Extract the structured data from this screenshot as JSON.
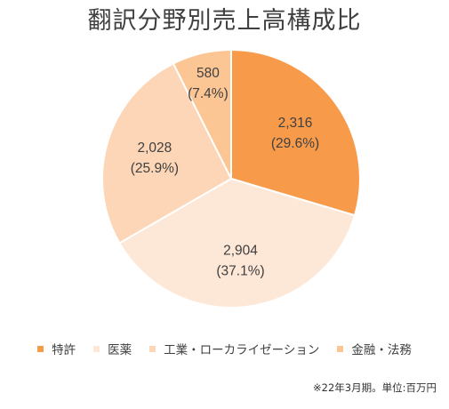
{
  "chart_data": {
    "type": "pie",
    "title": "翻訳分野別売上高構成比",
    "categories": [
      "特許",
      "医薬",
      "工業・ローカライゼーション",
      "金融・法務"
    ],
    "values": [
      2316,
      2904,
      2028,
      580
    ],
    "value_labels": [
      "2,316",
      "2,904",
      "2,028",
      "580"
    ],
    "percent_labels": [
      "(29.6%)",
      "(37.1%)",
      "(25.9%)",
      "(7.4%)"
    ],
    "colors": [
      "#f79b4b",
      "#fde7d7",
      "#fcd6b6",
      "#fbc594"
    ],
    "start_angle_deg": 0,
    "direction": "clockwise",
    "legend_position": "bottom"
  },
  "footnote": "※22年3月期。単位:百万円"
}
